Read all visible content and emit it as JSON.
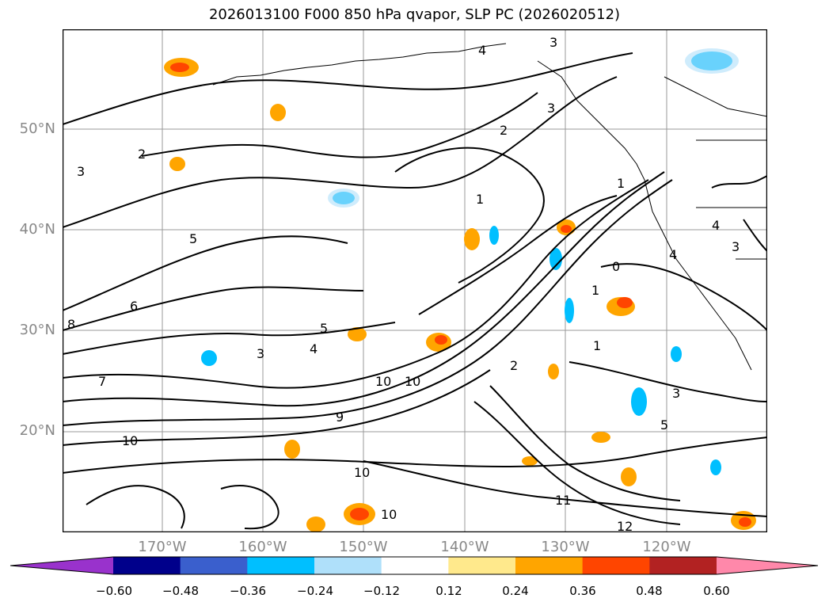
{
  "title": "2026013100 F000 850 hPa qvapor, SLP PC (2026020512)",
  "map": {
    "lat_labels": [
      "50°N",
      "40°N",
      "30°N",
      "20°N"
    ],
    "lon_labels": [
      "170°W",
      "160°W",
      "150°W",
      "140°W",
      "130°W",
      "120°W"
    ],
    "label_color": "#888888",
    "gridlines": true,
    "contour_labels": [
      "3",
      "4",
      "3",
      "5",
      "2",
      "1",
      "0",
      "1",
      "2",
      "3",
      "4",
      "5",
      "6",
      "7",
      "8",
      "9",
      "10",
      "10",
      "10",
      "10",
      "11",
      "12",
      "10",
      "2",
      "3",
      "4",
      "3",
      "4",
      "1",
      "1",
      "5",
      "3"
    ]
  },
  "colorbar": {
    "ticks": [
      "−0.60",
      "−0.48",
      "−0.36",
      "−0.24",
      "−0.12",
      "0.12",
      "0.24",
      "0.36",
      "0.48",
      "0.60"
    ],
    "colors": [
      "#9932cc",
      "#00008b",
      "#3a5fcd",
      "#00bfff",
      "#afe0fa",
      "#ffffff",
      "#ffe98c",
      "#ffa500",
      "#ff4500",
      "#b22222",
      "#ff88aa"
    ],
    "extend": "both"
  }
}
